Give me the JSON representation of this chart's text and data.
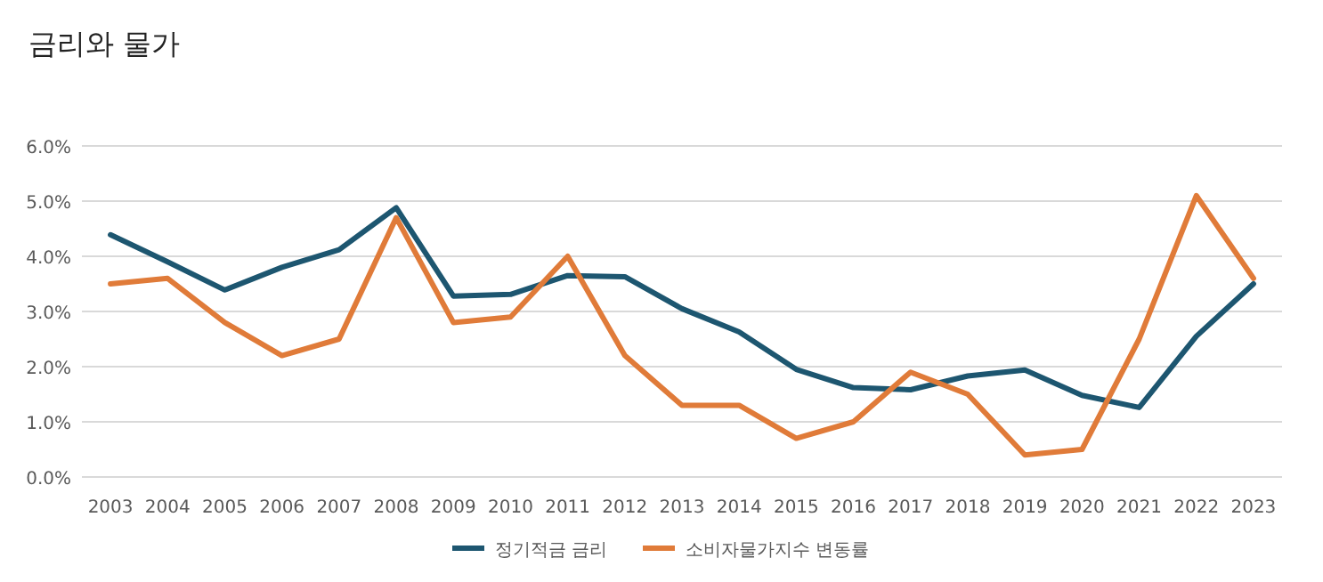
{
  "chart_data": {
    "type": "line",
    "title": "금리와 물가",
    "categories": [
      "2003",
      "2004",
      "2005",
      "2006",
      "2007",
      "2008",
      "2009",
      "2010",
      "2011",
      "2012",
      "2013",
      "2014",
      "2015",
      "2016",
      "2017",
      "2018",
      "2019",
      "2020",
      "2021",
      "2022",
      "2023"
    ],
    "series": [
      {
        "name": "정기적금 금리",
        "color": "#1d5670",
        "values": [
          4.39,
          3.9,
          3.39,
          3.8,
          4.12,
          4.88,
          3.28,
          3.31,
          3.65,
          3.63,
          3.05,
          2.63,
          1.95,
          1.62,
          1.58,
          1.83,
          1.94,
          1.48,
          1.26,
          2.55,
          3.5
        ]
      },
      {
        "name": "소비자물가지수 변동률",
        "color": "#e07b39",
        "values": [
          3.5,
          3.6,
          2.8,
          2.2,
          2.5,
          4.7,
          2.8,
          2.9,
          4.0,
          2.2,
          1.3,
          1.3,
          0.7,
          1.0,
          1.9,
          1.5,
          0.4,
          0.5,
          2.5,
          5.1,
          3.6
        ]
      }
    ],
    "ylim": [
      0,
      6
    ],
    "yticks": [
      {
        "value": 0,
        "label": "0.0%"
      },
      {
        "value": 1,
        "label": "1.0%"
      },
      {
        "value": 2,
        "label": "2.0%"
      },
      {
        "value": 3,
        "label": "3.0%"
      },
      {
        "value": 4,
        "label": "4.0%"
      },
      {
        "value": 5,
        "label": "5.0%"
      },
      {
        "value": 6,
        "label": "6.0%"
      }
    ],
    "grid": "y",
    "legend": "bottom",
    "marker": "none",
    "line_style": "solid"
  }
}
